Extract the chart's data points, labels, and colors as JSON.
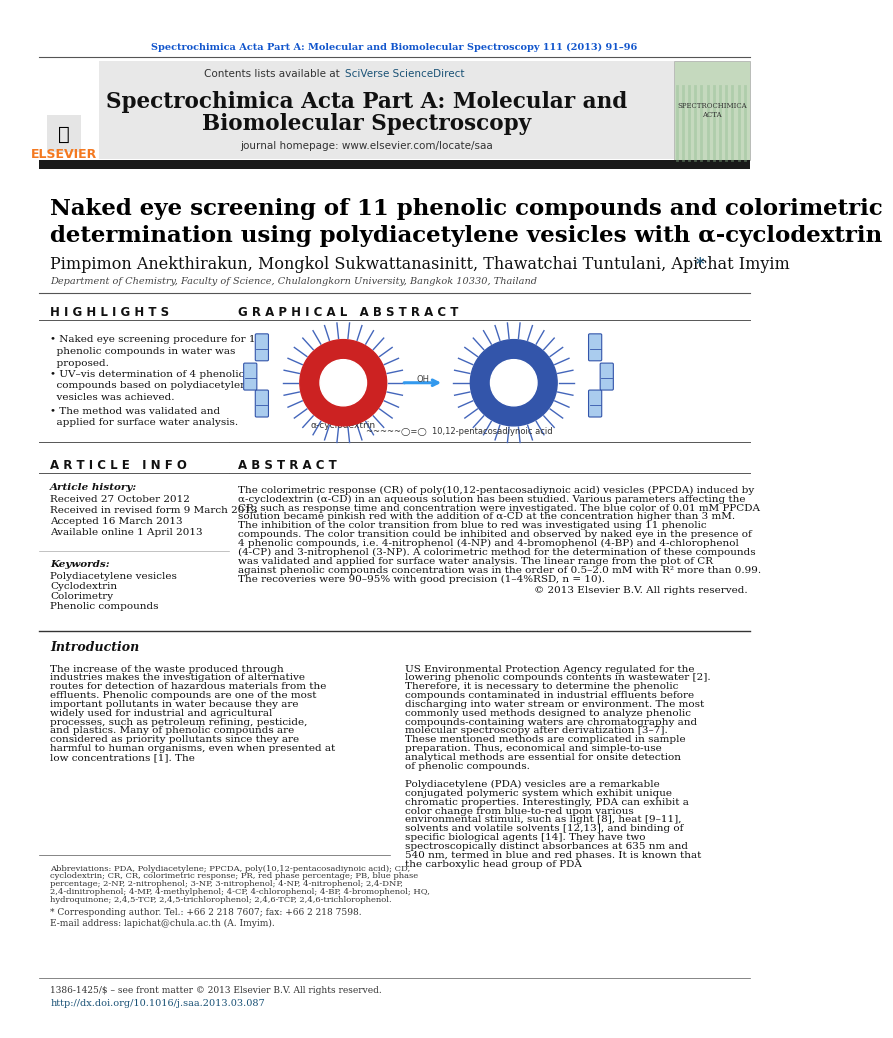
{
  "journal_line": "Spectrochimica Acta Part A: Molecular and Biomolecular Spectroscopy 111 (2013) 91–96",
  "journal_name_line1": "Spectrochimica Acta Part A: Molecular and",
  "journal_name_line2": "Biomolecular Spectroscopy",
  "homepage_line": "journal homepage: www.elsevier.com/locate/saa",
  "title_line1": "Naked eye screening of 11 phenolic compounds and colorimetric",
  "title_line2": "determination using polydiacetylene vesicles with α-cyclodextrin",
  "authors": "Pimpimon Anekthirakun, Mongkol Sukwattanasinitt, Thawatchai Tuntulani, Apichat Imyim",
  "affiliation": "Department of Chemistry, Faculty of Science, Chulalongkorn University, Bangkok 10330, Thailand",
  "highlights_title": "H I G H L I G H T S",
  "graphical_abstract_title": "G R A P H I C A L   A B S T R A C T",
  "article_info_title": "A R T I C L E   I N F O",
  "article_history_label": "Article history:",
  "received": "Received 27 October 2012",
  "received_revised": "Received in revised form 9 March 2013",
  "accepted": "Accepted 16 March 2013",
  "available": "Available online 1 April 2013",
  "keywords_label": "Keywords:",
  "keywords": [
    "Polydiacetylene vesicles",
    "Cyclodextrin",
    "Colorimetry",
    "Phenolic compounds"
  ],
  "abstract_title": "A B S T R A C T",
  "abstract_text": "The colorimetric response (CR) of poly(10,12-pentacosadiynoic acid) vesicles (PPCDA) induced by α-cyclodextrin (α-CD) in an aqueous solution has been studied. Various parameters affecting the CR, such as response time and concentration were investigated. The blue color of 0.01 mM PPCDA solution became pinkish red with the addition of α-CD at the concentration higher than 3 mM. The inhibition of the color transition from blue to red was investigated using 11 phenolic compounds. The color transition could be inhibited and observed by naked eye in the presence of 4 phenolic compounds, i.e. 4-nitrophenol (4-NP) and 4-bromophenol (4-BP) and 4-chlorophenol (4-CP) and 3-nitrophenol (3-NP). A colorimetric method for the determination of these compounds was validated and applied for surface water analysis. The linear range from the plot of CR against phenolic compounds concentration was in the order of 0.5–2.0 mM with R² more than 0.99. The recoveries were 90–95% with good precision (1–4%RSD, n = 10).",
  "copyright": "© 2013 Elsevier B.V. All rights reserved.",
  "intro_title": "Introduction",
  "intro_col1_p1": "The increase of the waste produced through industries makes the investigation of alternative routes for detection of hazardous materials from the effluents. Phenolic compounds are one of the most important pollutants in water because they are widely used for industrial and agricultural processes, such as petroleum refining, pesticide, and plastics. Many of phenolic compounds are considered as priority pollutants since they are harmful to human organisms, even when presented at low concentrations [1]. The",
  "intro_col2_p1": "US Environmental Protection Agency regulated for the lowering phenolic compounds contents in wastewater [2]. Therefore, it is necessary to determine the phenolic compounds contaminated in industrial effluents before discharging into water stream or environment. The most commonly used methods designed to analyze phenolic compounds-containing waters are chromatography and molecular spectroscopy after derivatization [3–7]. These mentioned methods are complicated in sample preparation. Thus, economical and simple-to-use analytical methods are essential for onsite detection of phenolic compounds.",
  "intro_col2_p2": "Polydiacetylene (PDA) vesicles are a remarkable conjugated polymeric system which exhibit unique chromatic properties. Interestingly, PDA can exhibit a color change from blue-to-red upon various environmental stimuli, such as light [8], heat [9–11], solvents and volatile solvents [12,13], and binding of specific biological agents [14]. They have two spectroscopically distinct absorbances at 635 nm and 540 nm, termed in blue and red phases. It is known that the carboxylic head group of PDA",
  "footnote_abbrev": "Abbreviations: PDA, Polydiacetylene; PPCDA, poly(10,12-pentacosadiynoic acid); CD, cyclodextrin; CR, CR, colorimetric response; PR, red phase percentage; PB, blue phase percentage; 2-NP, 2-nitrophenol; 3-NP, 3-nitrophenol; 4-NP, 4-nitrophenol; 2,4-DNP, 2,4-dinitrophenol; 4-MP, 4-methylphenol; 4-CP, 4-chlorophenol; 4-BP, 4-bromophenol; HQ, hydroquinone; 2,4,5-TCP, 2,4,5-trichlorophenol; 2,4,6-TCP, 2,4,6-trichlorophenol.",
  "footnote_corresponding": "* Corresponding author. Tel.: +66 2 218 7607; fax: +66 2 218 7598.",
  "footnote_email": "E-mail address: lapichat@chula.ac.th (A. Imyim).",
  "footer_issn": "1386-1425/$ – see front matter © 2013 Elsevier B.V. All rights reserved.",
  "footer_doi": "http://dx.doi.org/10.1016/j.saa.2013.03.087",
  "bg_color": "#ffffff",
  "header_bg": "#e8e8e8",
  "elsevier_orange": "#f47920",
  "link_blue": "#1a5276",
  "journal_color": "#1155cc"
}
